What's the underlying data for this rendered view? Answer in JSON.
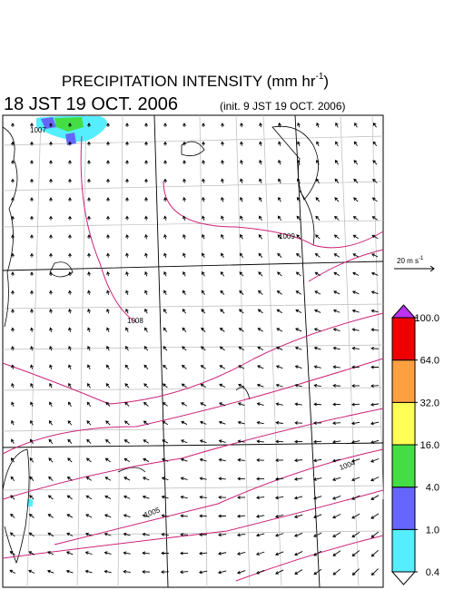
{
  "title": {
    "text": "PRECIPITATION INTENSITY (mm hr",
    "exponent": "-1",
    "close": ")"
  },
  "valid_time": "18 JST 19 OCT. 2006",
  "init_time": "(init. 9 JST 19 OCT. 2006)",
  "reference_vector": {
    "text": "20 m s",
    "exponent": "-1"
  },
  "isobar_labels": [
    "1007",
    "1009",
    "1008",
    "1005",
    "1004"
  ],
  "colorbar": {
    "levels": [
      {
        "value": 0.4,
        "label": "0.4"
      },
      {
        "value": 1,
        "label": "1.0"
      },
      {
        "value": 4,
        "label": "4.0"
      },
      {
        "value": 16,
        "label": "16.0"
      },
      {
        "value": 32,
        "label": "32.0"
      },
      {
        "value": 64,
        "label": "64.0"
      },
      {
        "value": 100,
        "label": "100.0"
      }
    ],
    "colors": [
      "#55eeff",
      "#6666ff",
      "#44dd44",
      "#ffff55",
      "#ffa040",
      "#ee0000"
    ],
    "under_color": "#ffffff",
    "over_color": "#bb33ee"
  }
}
